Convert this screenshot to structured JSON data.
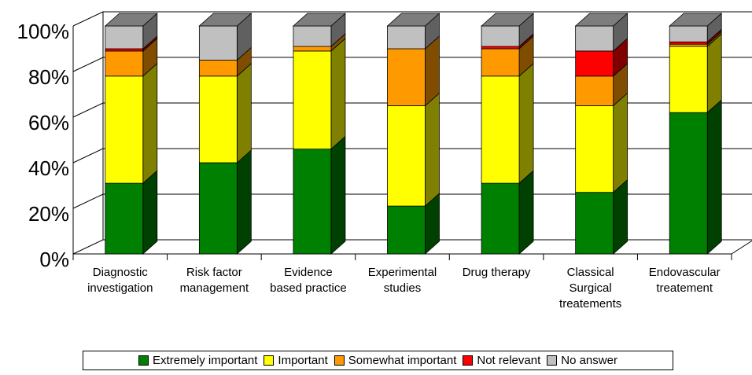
{
  "chart_data": {
    "type": "stacked_bar_3d",
    "categories": [
      "Diagnostic investigation",
      "Risk factor management",
      "Evidence based practice",
      "Experimental studies",
      "Drug therapy",
      "Classical Surgical treatements",
      "Endovascular treatement"
    ],
    "series": [
      {
        "name": "Extremely important",
        "color": "#008000",
        "values": [
          31,
          40,
          46,
          21,
          31,
          27,
          62
        ]
      },
      {
        "name": "Important",
        "color": "#ffff00",
        "values": [
          47,
          38,
          43,
          44,
          47,
          38,
          29
        ]
      },
      {
        "name": "Somewhat important",
        "color": "#ff9900",
        "values": [
          11,
          7,
          2,
          25,
          12,
          13,
          1
        ]
      },
      {
        "name": "Not relevant",
        "color": "#ff0000",
        "values": [
          1,
          0,
          0,
          0,
          1,
          11,
          1
        ]
      },
      {
        "name": "No answer",
        "color": "#c0c0c0",
        "values": [
          10,
          15,
          9,
          10,
          9,
          11,
          7
        ]
      }
    ],
    "ylim": [
      0,
      100
    ],
    "yticks": [
      {
        "value": 0,
        "label": "0%"
      },
      {
        "value": 20,
        "label": "20%"
      },
      {
        "value": 40,
        "label": "40%"
      },
      {
        "value": 60,
        "label": "60%"
      },
      {
        "value": 80,
        "label": "80%"
      },
      {
        "value": 100,
        "label": "100%"
      }
    ],
    "grid": true
  }
}
